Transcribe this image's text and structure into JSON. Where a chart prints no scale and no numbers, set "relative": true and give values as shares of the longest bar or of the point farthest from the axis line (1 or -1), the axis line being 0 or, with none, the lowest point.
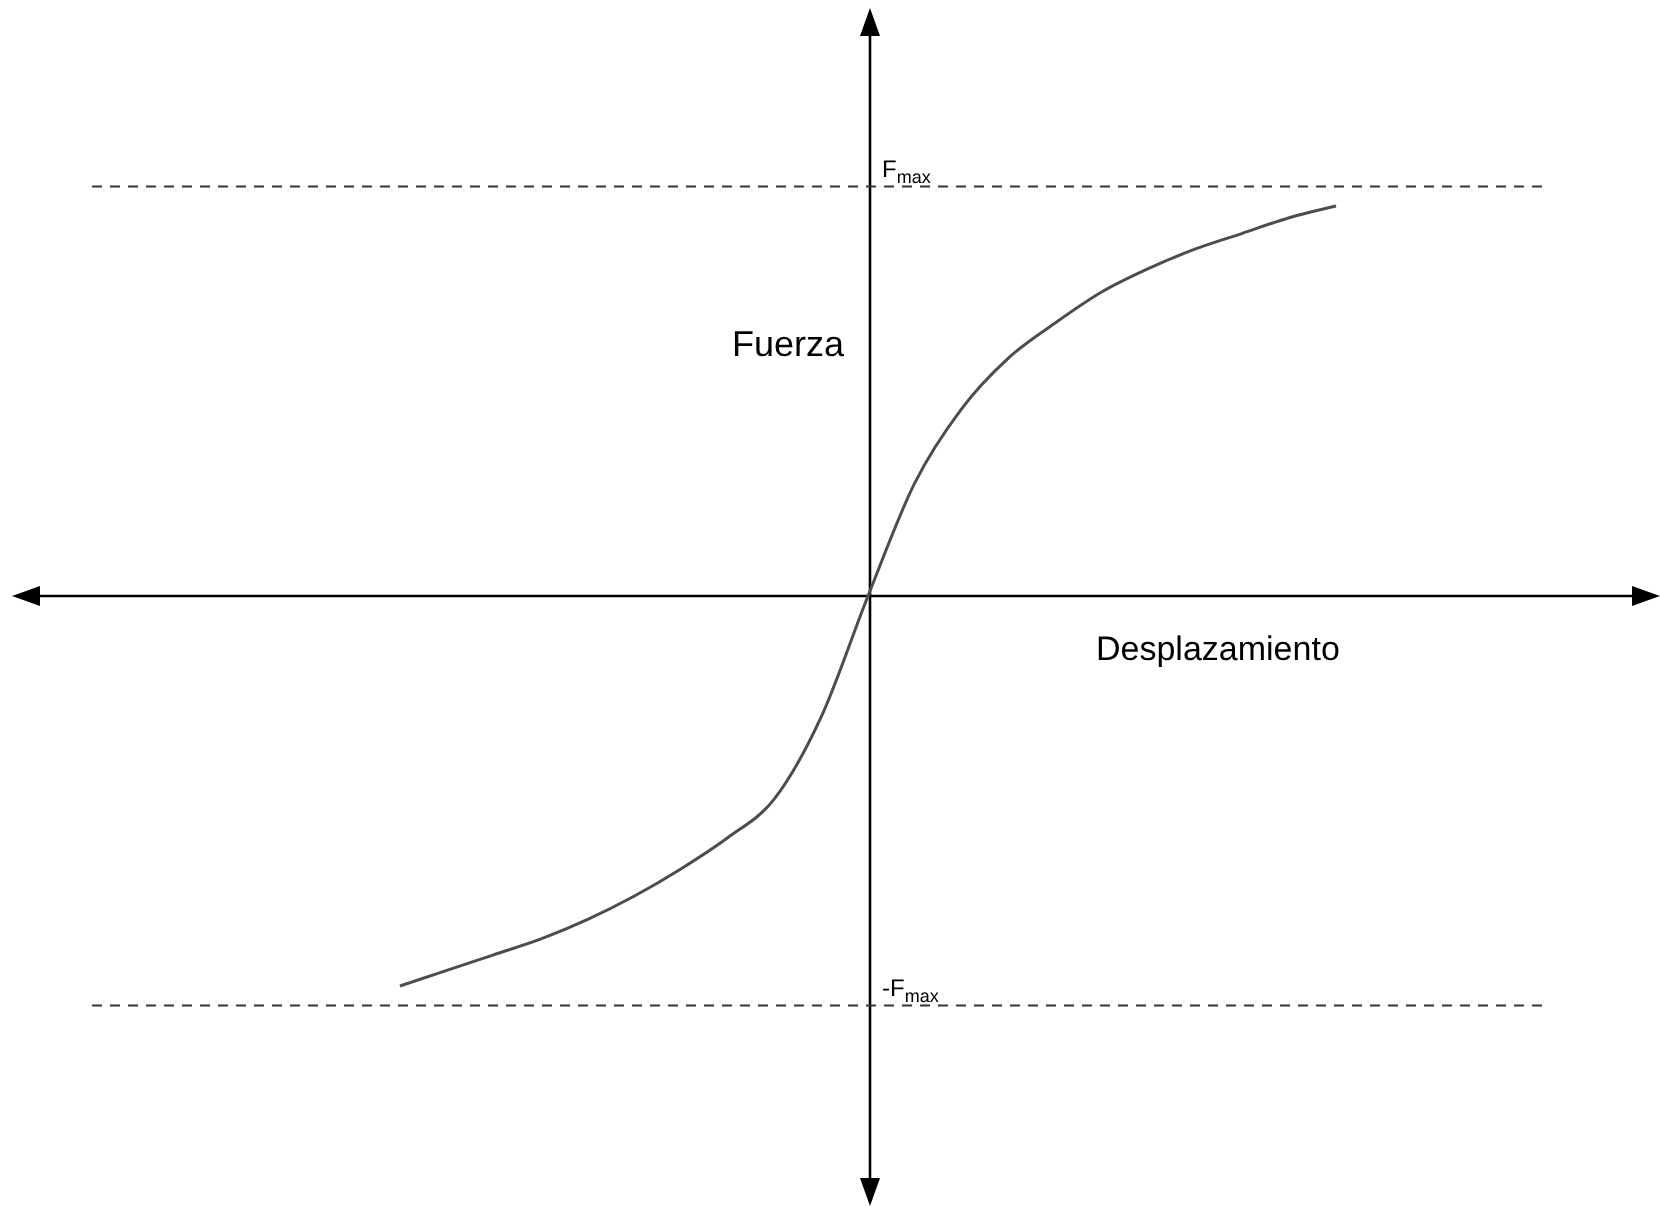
{
  "chart_data": {
    "type": "line",
    "relative": true,
    "xlabel": "Desplazamiento",
    "ylabel": "Fuerza",
    "categories": [
      null,
      null,
      null,
      null,
      null,
      null,
      null,
      null,
      null,
      null,
      null,
      null,
      null,
      null,
      null,
      null,
      null,
      null,
      null,
      null,
      null
    ],
    "series": [
      {
        "color": "#4d4d4d",
        "values": [
          -1.0,
          -0.96,
          -0.92,
          -0.88,
          -0.83,
          -0.77,
          -0.7,
          -0.62,
          -0.52,
          -0.31,
          0,
          0.29,
          0.48,
          0.61,
          0.7,
          0.78,
          0.84,
          0.89,
          0.93,
          0.97,
          1.0
        ]
      }
    ],
    "ref_lines": [
      {
        "axis": "y",
        "value": 1.05,
        "label": "F$_{max}$",
        "line_style": "dashed",
        "color": "#333333"
      },
      {
        "axis": "y",
        "value": -1.05,
        "label": "-F$_{max}$",
        "line_style": "dashed",
        "color": "#333333"
      }
    ],
    "marker": "none",
    "line_style": "solid"
  }
}
